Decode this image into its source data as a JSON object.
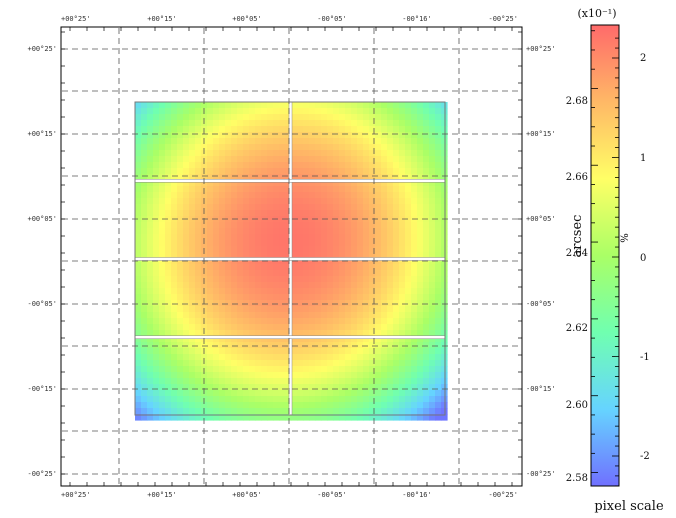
{
  "chart_data": {
    "type": "heatmap",
    "title": "",
    "grid": true,
    "x_ticks": [
      "+00°25'",
      "+00°15'",
      "+00°05'",
      "-00°05'",
      "-00°16'",
      "-00°25'"
    ],
    "y_ticks": [
      "+00°25'",
      "+00°15'",
      "+00°05'",
      "-00°05'",
      "-00°15'",
      "-00°25'"
    ],
    "colorbar": {
      "label": "pixel scale",
      "unit_label": "arcsec",
      "ticks_left": [
        "2.58",
        "2.60",
        "2.62",
        "2.64",
        "2.66",
        "2.68"
      ],
      "tick_values_left": [
        2.58,
        2.6,
        2.62,
        2.64,
        2.66,
        2.68
      ],
      "range": [
        2.5765,
        2.6965
      ],
      "ticks_right": [
        "-2",
        "-1",
        "0",
        "1",
        "2"
      ],
      "tick_values_right": [
        -2,
        -1,
        0,
        1,
        2
      ],
      "right_label": "%",
      "scale_note": "(x10⁻¹)",
      "colormap": [
        "#7070ff",
        "#66d4ff",
        "#70ffb0",
        "#aaff66",
        "#ffff66",
        "#ffb866",
        "#ff6a6a"
      ]
    },
    "map": {
      "center_value": 2.6935,
      "corner_value": 2.5805,
      "ccd_columns": 2,
      "ccd_rows": 4
    }
  }
}
